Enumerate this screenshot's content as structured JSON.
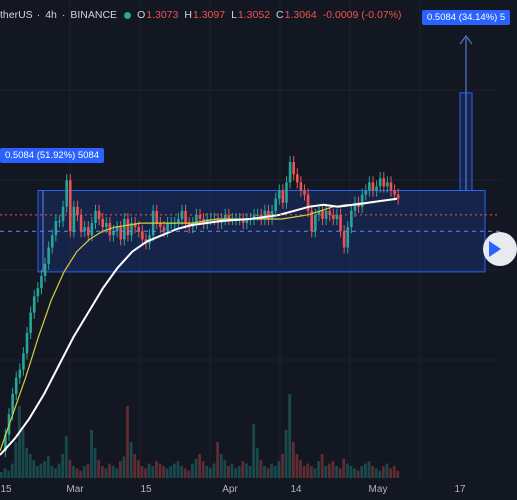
{
  "header": {
    "symbol": "therUS",
    "interval": "4h",
    "exchange": "BINANCE",
    "ohlc": [
      {
        "k": "O",
        "v": "1.3073"
      },
      {
        "k": "H",
        "v": "1.3097"
      },
      {
        "k": "L",
        "v": "1.3052"
      },
      {
        "k": "C",
        "v": "1.3064"
      }
    ],
    "change": "-0.0009 (-0.07%)"
  },
  "measure_labels": {
    "left": "0.5084 (51.92%) 5084",
    "right": "0.5084 (34.14%) 5"
  },
  "colors": {
    "background": "#131722",
    "up": "#26a69a",
    "down": "#ef5350",
    "range_box": "#2962ff",
    "ma_fast": "#d4cf3b",
    "ma_slow": "#ffffff"
  },
  "icons": {
    "play": "play-icon",
    "status": "status-dot-icon"
  },
  "chart_data": {
    "type": "candlestick",
    "interval": "4h",
    "x_ticks": [
      "15",
      "Mar",
      "15",
      "Apr",
      "14",
      "May",
      "17"
    ],
    "series": [
      {
        "kind": "price",
        "y_min": 0.7,
        "y_max": 2.15,
        "y_close": [
          0.72,
          0.8,
          0.9,
          1.0,
          1.08,
          1.12,
          1.2,
          1.3,
          1.4,
          1.48,
          1.52,
          1.58,
          1.64,
          1.72,
          1.78,
          1.85,
          1.85,
          1.92,
          2.05,
          1.8,
          1.92,
          1.88,
          1.8,
          1.82,
          1.78,
          1.84,
          1.9,
          1.86,
          1.82,
          1.84,
          1.78,
          1.8,
          1.82,
          1.76,
          1.86,
          1.78,
          1.84,
          1.82,
          1.8,
          1.76,
          1.74,
          1.78,
          1.9,
          1.84,
          1.82,
          1.8,
          1.84,
          1.84,
          1.84,
          1.86,
          1.9,
          1.84,
          1.82,
          1.84,
          1.88,
          1.86,
          1.84,
          1.86,
          1.86,
          1.86,
          1.84,
          1.86,
          1.88,
          1.86,
          1.86,
          1.86,
          1.86,
          1.84,
          1.86,
          1.86,
          1.88,
          1.88,
          1.86,
          1.9,
          1.86,
          1.9,
          1.96,
          2.0,
          1.94,
          2.04,
          2.14,
          2.08,
          2.04,
          2.0,
          1.98,
          1.9,
          1.8,
          1.88,
          1.9,
          1.86,
          1.9,
          1.88,
          1.86,
          1.88,
          1.8,
          1.72,
          1.82,
          1.9,
          1.94,
          1.92,
          1.98,
          2.0,
          2.04,
          2.0,
          2.02,
          2.06,
          2.02,
          2.04,
          2.0,
          1.98,
          1.96
        ]
      },
      {
        "kind": "ma_fast",
        "y": [
          0.72,
          0.9,
          1.08,
          1.28,
          1.46,
          1.6,
          1.7,
          1.76,
          1.8,
          1.82,
          1.83,
          1.84,
          1.84,
          1.84,
          1.84,
          1.84,
          1.85,
          1.86,
          1.86,
          1.86,
          1.86,
          1.86,
          1.86,
          1.87,
          1.88,
          1.9,
          1.92,
          1.93,
          1.93,
          1.94,
          1.95,
          1.96
        ]
      },
      {
        "kind": "ma_slow",
        "y": [
          0.7,
          0.78,
          0.88,
          1.0,
          1.14,
          1.28,
          1.4,
          1.52,
          1.62,
          1.7,
          1.75,
          1.78,
          1.81,
          1.83,
          1.84,
          1.85,
          1.855,
          1.86,
          1.87,
          1.88,
          1.9,
          1.92,
          1.93,
          1.92,
          1.93,
          1.94,
          1.95,
          1.96
        ]
      }
    ],
    "volume": {
      "y_max": 100,
      "values": [
        5,
        8,
        6,
        12,
        30,
        60,
        40,
        25,
        20,
        15,
        10,
        12,
        14,
        18,
        10,
        8,
        12,
        20,
        35,
        15,
        10,
        8,
        6,
        10,
        12,
        40,
        25,
        15,
        10,
        8,
        12,
        10,
        8,
        14,
        18,
        60,
        30,
        20,
        15,
        10,
        8,
        12,
        10,
        14,
        12,
        10,
        8,
        10,
        12,
        14,
        10,
        8,
        6,
        12,
        16,
        20,
        14,
        10,
        8,
        12,
        30,
        20,
        15,
        10,
        12,
        8,
        10,
        14,
        12,
        10,
        45,
        25,
        15,
        10,
        8,
        12,
        10,
        14,
        20,
        40,
        70,
        30,
        20,
        15,
        10,
        12,
        10,
        8,
        14,
        20,
        10,
        12,
        14,
        10,
        8,
        16,
        12,
        10,
        8,
        6,
        10,
        12,
        14,
        10,
        8,
        6,
        10,
        12,
        8,
        10,
        6
      ]
    },
    "annotations": [
      {
        "kind": "range_box",
        "y_top": 2.0,
        "y_bottom": 1.6,
        "label": "0.5084 (51.92%) 5084"
      },
      {
        "kind": "range_box",
        "y_top": 2.48,
        "y_bottom": 2.0,
        "label": "0.5084 (34.14%) 5"
      },
      {
        "kind": "price_line",
        "y": 1.88
      }
    ]
  }
}
